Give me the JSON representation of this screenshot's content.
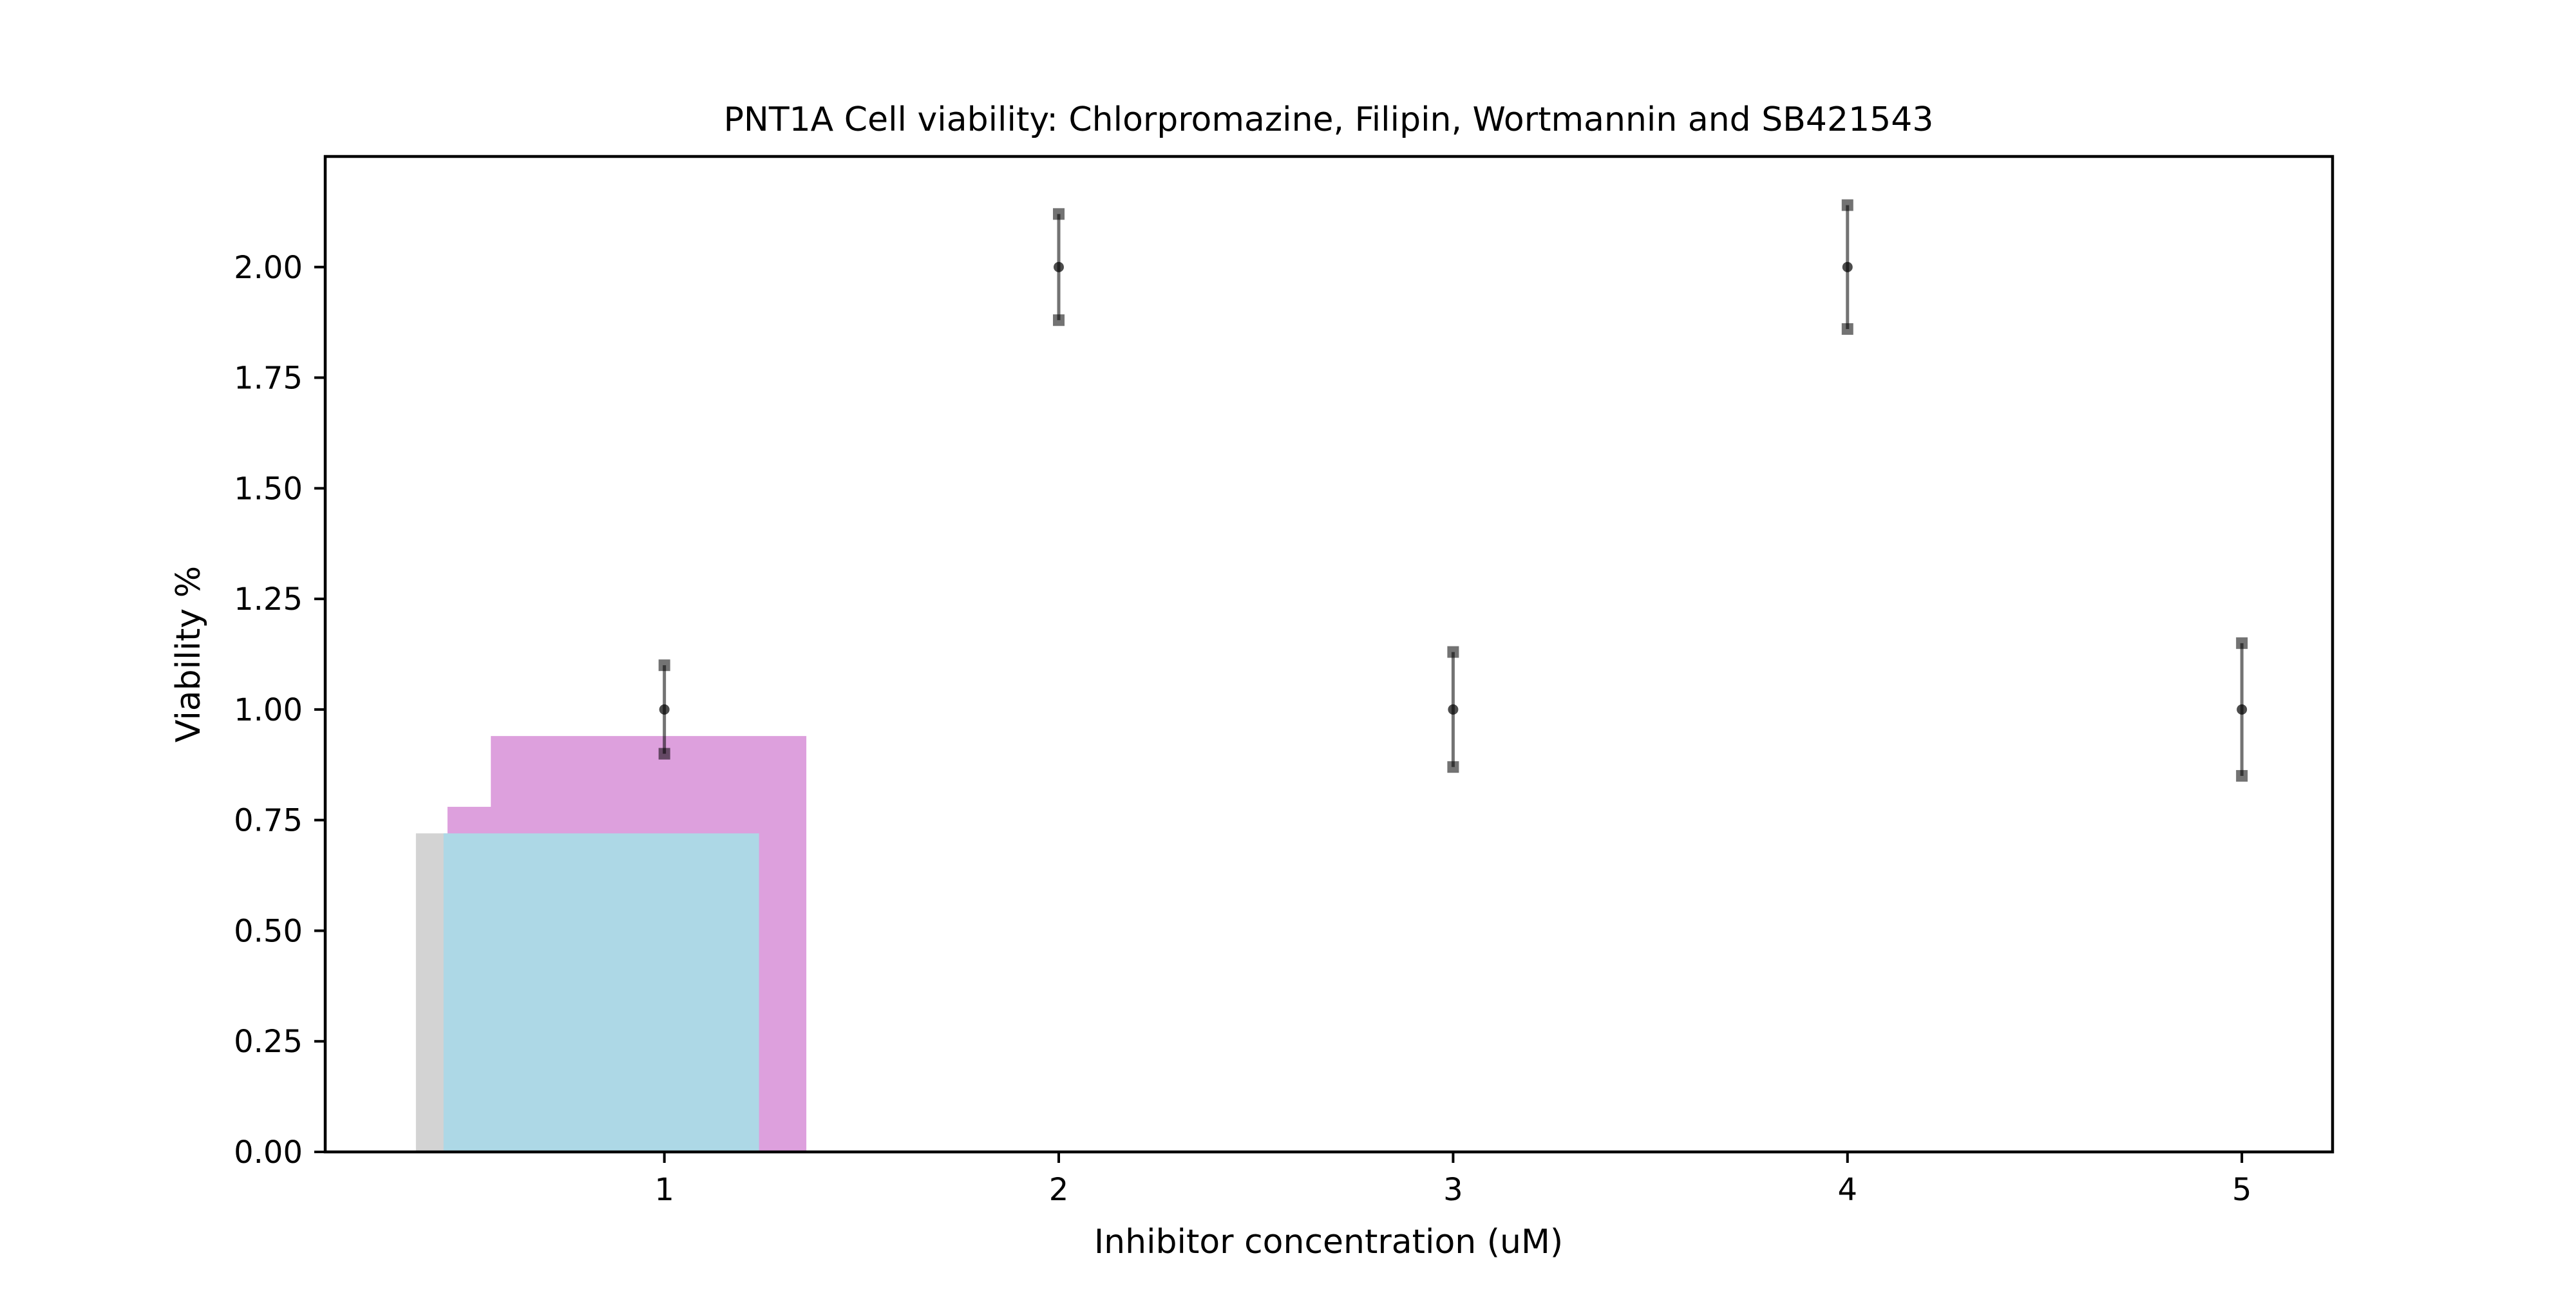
{
  "chart_data": {
    "type": "bar",
    "title": "PNT1A Cell viability: Chlorpromazine, Filipin, Wortmannin and SB421543",
    "xlabel": "Inhibitor concentration (uM)",
    "ylabel": "Viability %",
    "xlim": [
      0.14,
      5.23
    ],
    "ylim": [
      0,
      2.25
    ],
    "x_ticks": [
      1,
      2,
      3,
      4,
      5
    ],
    "x_tick_labels": [
      "1",
      "2",
      "3",
      "4",
      "5"
    ],
    "y_ticks": [
      0,
      0.25,
      0.5,
      0.75,
      1.0,
      1.25,
      1.5,
      1.75,
      2.0
    ],
    "y_tick_labels": [
      "0.00",
      "0.25",
      "0.50",
      "0.75",
      "1.00",
      "1.25",
      "1.50",
      "1.75",
      "2.00"
    ],
    "grid": false,
    "legend": null,
    "bars": [
      {
        "x_start": 0.37,
        "x_end": 0.81,
        "value": 0.72,
        "color": "#d3d3d3"
      },
      {
        "x_start": 0.45,
        "x_end": 1.24,
        "value": 0.78,
        "color": "#dda0dd"
      },
      {
        "x_start": 0.56,
        "x_end": 1.36,
        "value": 0.94,
        "color": "#dda0dd"
      },
      {
        "x_start": 0.44,
        "x_end": 1.24,
        "value": 0.72,
        "color": "#add8e6"
      }
    ],
    "points": [
      {
        "x": 1,
        "y": 1.0,
        "err_low": 0.9,
        "err_high": 1.1
      },
      {
        "x": 2,
        "y": 2.0,
        "err_low": 1.88,
        "err_high": 2.12
      },
      {
        "x": 3,
        "y": 1.0,
        "err_low": 0.87,
        "err_high": 1.13
      },
      {
        "x": 4,
        "y": 2.0,
        "err_low": 1.86,
        "err_high": 2.14
      },
      {
        "x": 5,
        "y": 1.0,
        "err_low": 0.85,
        "err_high": 1.15
      }
    ],
    "error_color": "#000000"
  }
}
